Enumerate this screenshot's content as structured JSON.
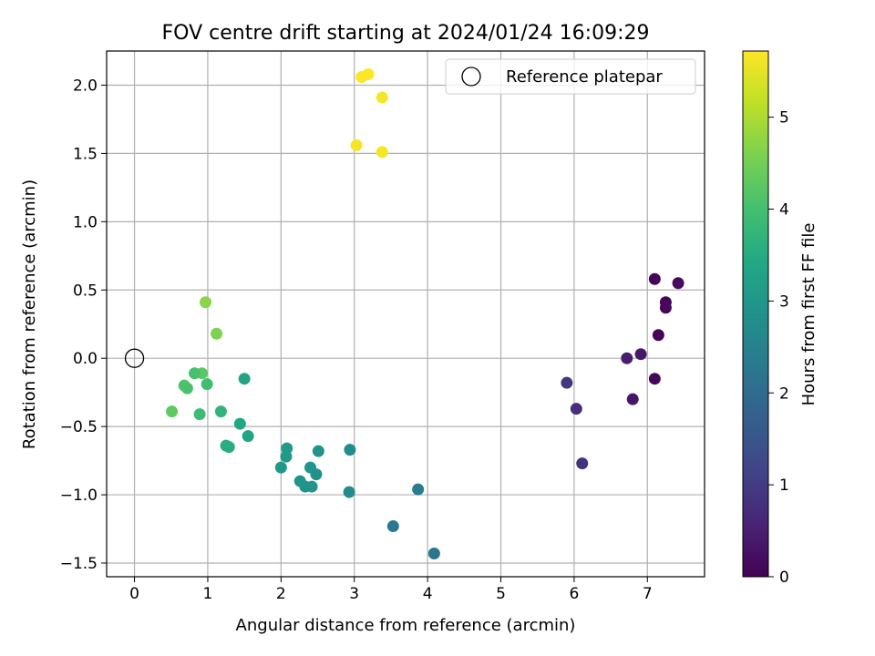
{
  "chart_data": {
    "type": "scatter",
    "title": "FOV centre drift starting at 2024/01/24 16:09:29",
    "xlabel": "Angular distance from reference (arcmin)",
    "ylabel": "Rotation from reference (arcmin)",
    "xlim": [
      -0.38,
      7.78
    ],
    "ylim": [
      -1.6,
      2.25
    ],
    "x_ticks": [
      0,
      1,
      2,
      3,
      4,
      5,
      6,
      7
    ],
    "y_ticks": [
      -1.5,
      -1.0,
      -0.5,
      0.0,
      0.5,
      1.0,
      1.5,
      2.0
    ],
    "x_tick_labels": [
      "0",
      "1",
      "2",
      "3",
      "4",
      "5",
      "6",
      "7"
    ],
    "y_tick_labels": [
      "−1.5",
      "−1.0",
      "−0.5",
      "0.0",
      "0.5",
      "1.0",
      "1.5",
      "2.0"
    ],
    "grid": true,
    "legend": {
      "placement": "top-right",
      "entries": [
        "Reference platepar"
      ]
    },
    "reference_point": {
      "x": 0,
      "y": 0
    },
    "colorbar": {
      "label": "Hours from first FF file",
      "colormap": "viridis",
      "range": [
        0,
        5.72
      ],
      "ticks": [
        0,
        1,
        2,
        3,
        4,
        5
      ],
      "tick_labels": [
        "0",
        "1",
        "2",
        "3",
        "4",
        "5"
      ]
    },
    "points": [
      {
        "x": 7.1,
        "y": 0.58,
        "c": 0.05
      },
      {
        "x": 7.42,
        "y": 0.55,
        "c": 0.15
      },
      {
        "x": 7.25,
        "y": 0.41,
        "c": 0.1
      },
      {
        "x": 7.25,
        "y": 0.37,
        "c": 0.12
      },
      {
        "x": 7.15,
        "y": 0.17,
        "c": 0.05
      },
      {
        "x": 6.91,
        "y": 0.03,
        "c": 0.4
      },
      {
        "x": 6.72,
        "y": 0.0,
        "c": 0.45
      },
      {
        "x": 7.1,
        "y": -0.15,
        "c": 0.08
      },
      {
        "x": 6.8,
        "y": -0.3,
        "c": 0.35
      },
      {
        "x": 5.9,
        "y": -0.18,
        "c": 0.9
      },
      {
        "x": 6.03,
        "y": -0.37,
        "c": 0.75
      },
      {
        "x": 6.11,
        "y": -0.77,
        "c": 0.8
      },
      {
        "x": 4.09,
        "y": -1.43,
        "c": 2.25
      },
      {
        "x": 3.53,
        "y": -1.23,
        "c": 2.3
      },
      {
        "x": 3.87,
        "y": -0.96,
        "c": 2.4
      },
      {
        "x": 2.93,
        "y": -0.98,
        "c": 2.7
      },
      {
        "x": 2.94,
        "y": -0.67,
        "c": 2.8
      },
      {
        "x": 2.51,
        "y": -0.68,
        "c": 2.9
      },
      {
        "x": 2.48,
        "y": -0.85,
        "c": 2.85
      },
      {
        "x": 2.4,
        "y": -0.8,
        "c": 2.95
      },
      {
        "x": 2.33,
        "y": -0.94,
        "c": 2.9
      },
      {
        "x": 2.42,
        "y": -0.94,
        "c": 2.95
      },
      {
        "x": 2.26,
        "y": -0.9,
        "c": 2.95
      },
      {
        "x": 2.0,
        "y": -0.8,
        "c": 3.05
      },
      {
        "x": 2.07,
        "y": -0.72,
        "c": 3.05
      },
      {
        "x": 2.08,
        "y": -0.66,
        "c": 3.1
      },
      {
        "x": 1.55,
        "y": -0.57,
        "c": 3.35
      },
      {
        "x": 1.44,
        "y": -0.48,
        "c": 3.4
      },
      {
        "x": 1.5,
        "y": -0.15,
        "c": 3.35
      },
      {
        "x": 1.25,
        "y": -0.64,
        "c": 3.55
      },
      {
        "x": 1.29,
        "y": -0.65,
        "c": 3.55
      },
      {
        "x": 1.18,
        "y": -0.39,
        "c": 3.7
      },
      {
        "x": 0.99,
        "y": -0.19,
        "c": 3.95
      },
      {
        "x": 0.89,
        "y": -0.41,
        "c": 3.9
      },
      {
        "x": 0.92,
        "y": -0.11,
        "c": 4.25
      },
      {
        "x": 0.82,
        "y": -0.11,
        "c": 4.05
      },
      {
        "x": 0.68,
        "y": -0.2,
        "c": 4.1
      },
      {
        "x": 0.72,
        "y": -0.22,
        "c": 4.05
      },
      {
        "x": 0.51,
        "y": -0.39,
        "c": 4.3
      },
      {
        "x": 1.12,
        "y": 0.18,
        "c": 4.6
      },
      {
        "x": 0.97,
        "y": 0.41,
        "c": 4.7
      },
      {
        "x": 3.03,
        "y": 1.56,
        "c": 5.65
      },
      {
        "x": 3.38,
        "y": 1.51,
        "c": 5.65
      },
      {
        "x": 3.38,
        "y": 1.91,
        "c": 5.65
      },
      {
        "x": 3.1,
        "y": 2.06,
        "c": 5.7
      },
      {
        "x": 3.19,
        "y": 2.08,
        "c": 5.7
      }
    ]
  }
}
